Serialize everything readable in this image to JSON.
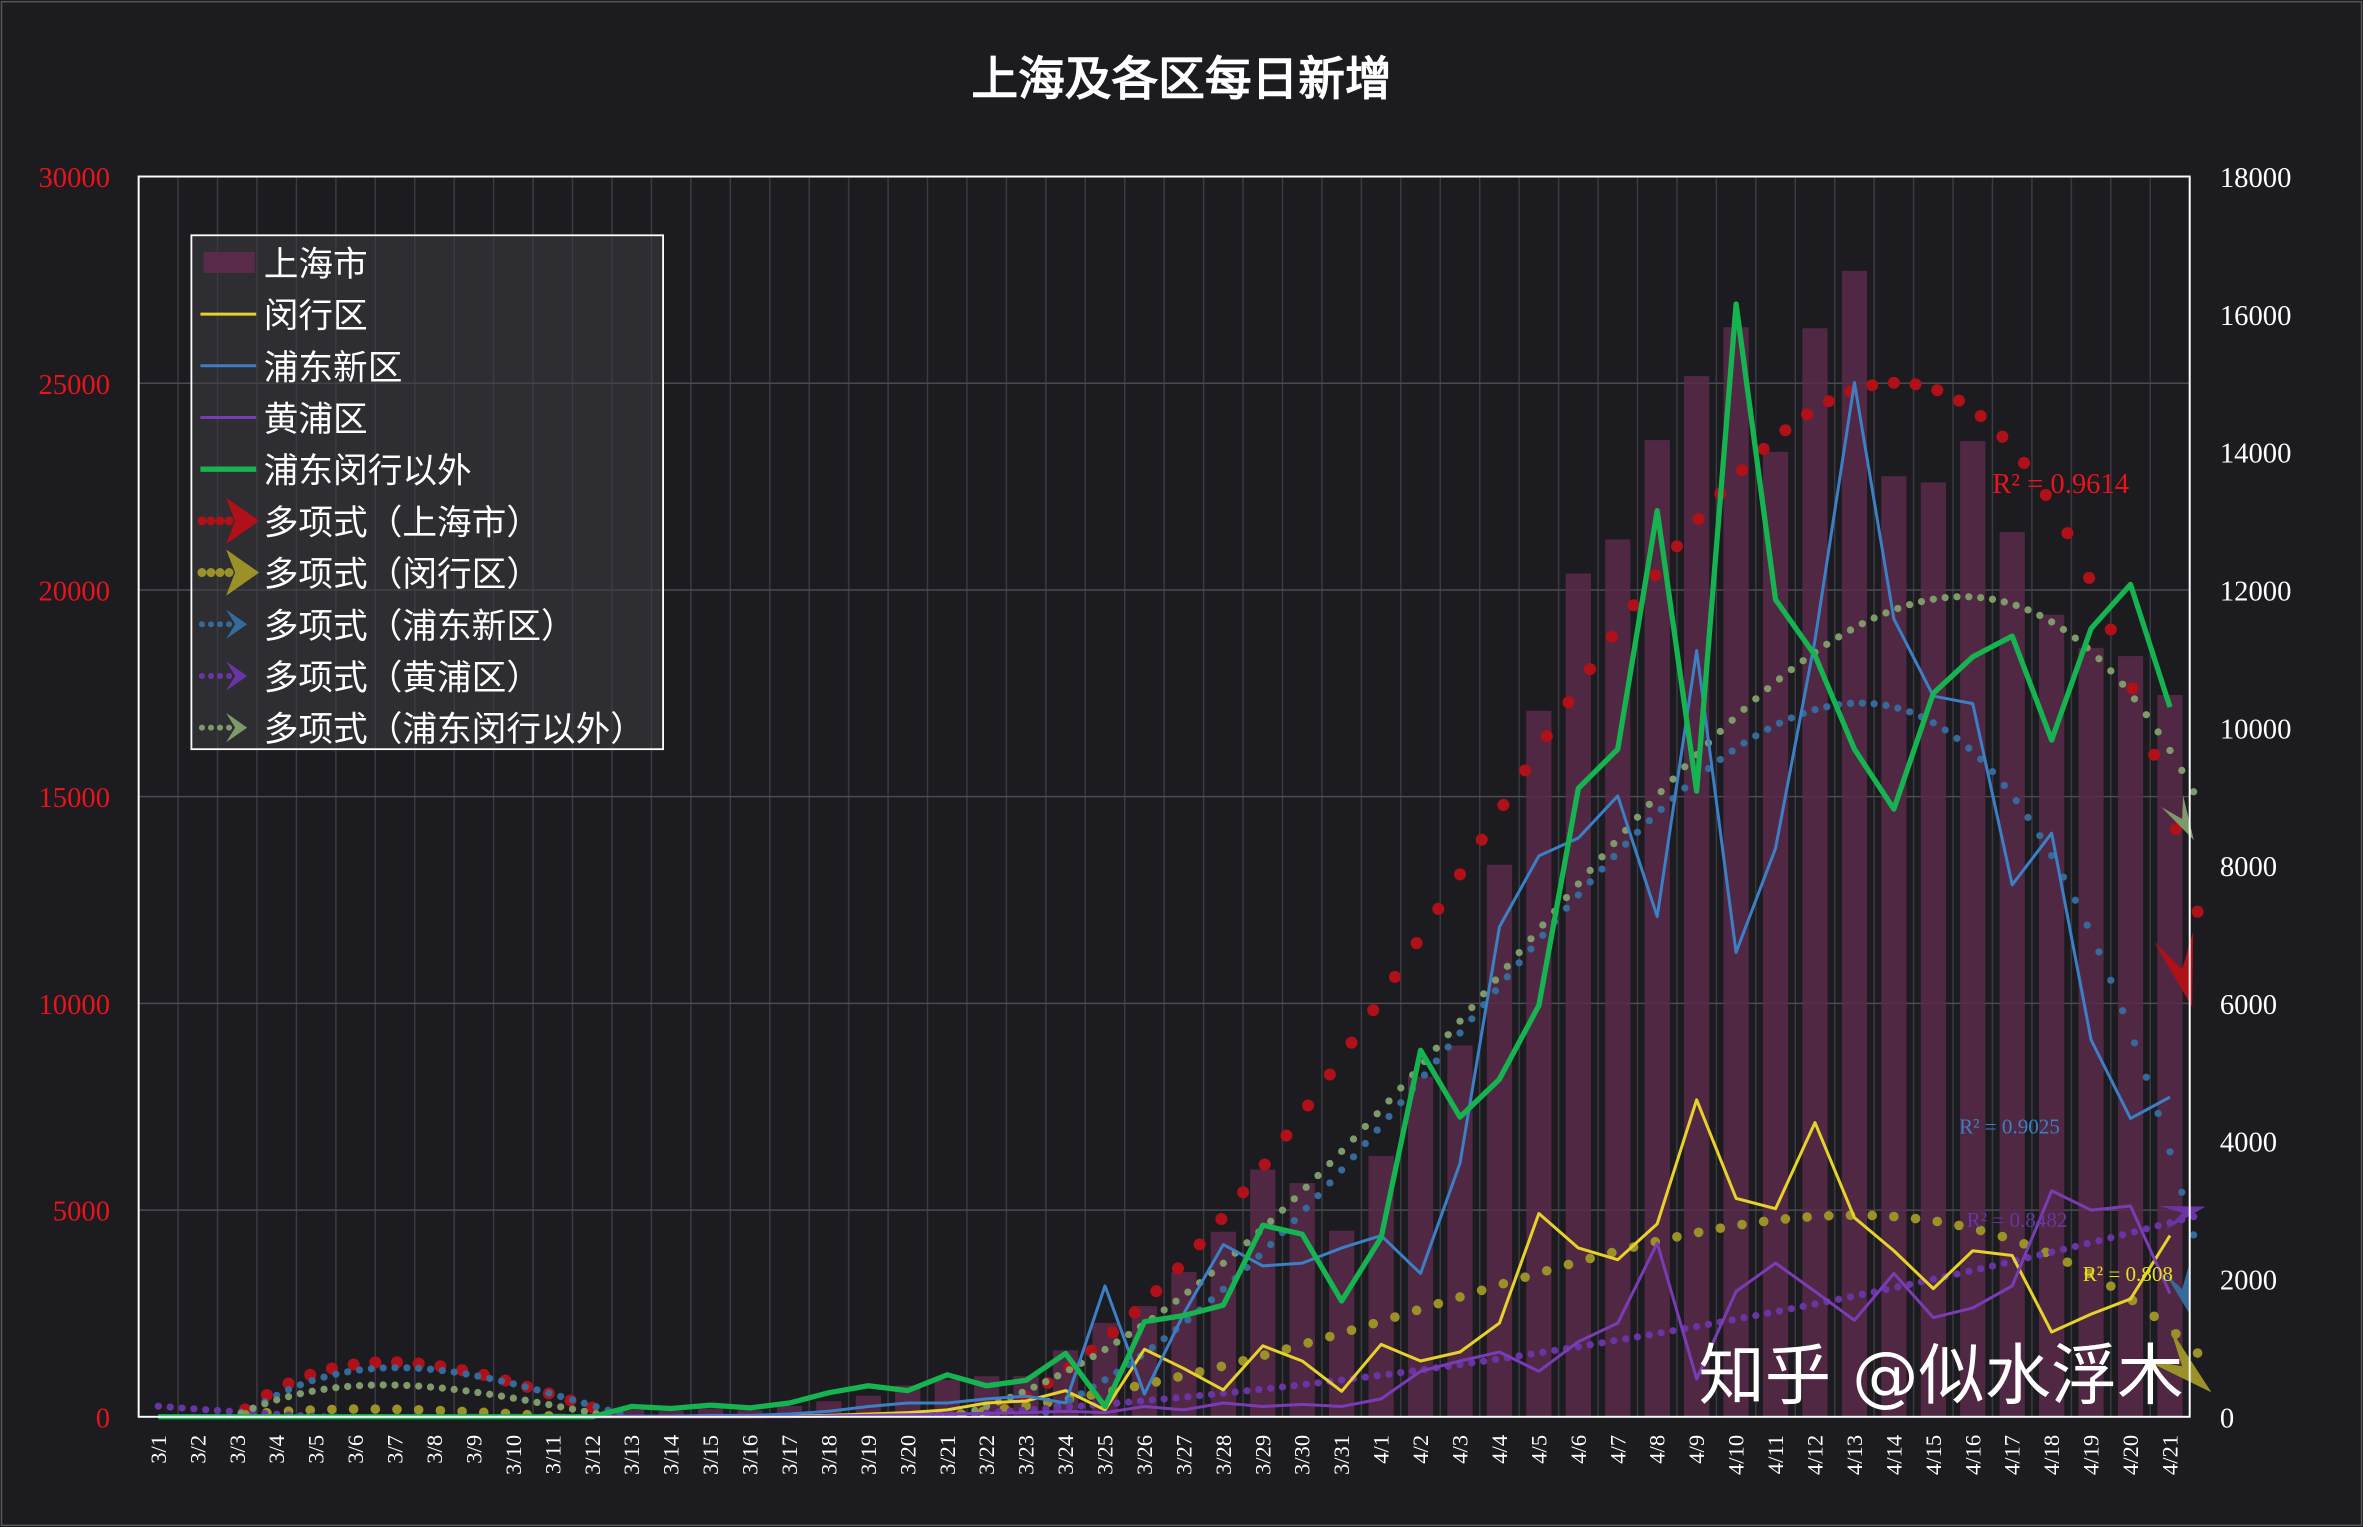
{
  "chart_data": {
    "type": "bar+line",
    "title": "上海及各区每日新增",
    "categories": [
      "3/1",
      "3/2",
      "3/3",
      "3/4",
      "3/5",
      "3/6",
      "3/7",
      "3/8",
      "3/9",
      "3/10",
      "3/11",
      "3/12",
      "3/13",
      "3/14",
      "3/15",
      "3/16",
      "3/17",
      "3/18",
      "3/19",
      "3/20",
      "3/21",
      "3/22",
      "3/23",
      "3/24",
      "3/25",
      "3/26",
      "3/27",
      "3/28",
      "3/29",
      "3/30",
      "3/31",
      "4/1",
      "4/2",
      "4/3",
      "4/4",
      "4/5",
      "4/6",
      "4/7",
      "4/8",
      "4/9",
      "4/10",
      "4/11",
      "4/12",
      "4/13",
      "4/14",
      "4/15",
      "4/16",
      "4/17",
      "4/18",
      "4/19",
      "4/20",
      "4/21"
    ],
    "left_axis": {
      "min": 0,
      "max": 30000,
      "ticks": [
        "0",
        "5000",
        "10000",
        "15000",
        "20000",
        "25000",
        "30000"
      ],
      "color": "#e8141c"
    },
    "right_axis": {
      "min": 0,
      "max": 18000,
      "ticks": [
        "0",
        "2000",
        "4000",
        "6000",
        "8000",
        "10000",
        "12000",
        "14000",
        "16000",
        "18000"
      ],
      "color": "#ffffff"
    },
    "grid": true,
    "legend_position": "top-left",
    "series": [
      {
        "name": "上海市",
        "type": "bar",
        "axis": "left",
        "color": "#5a2a4a",
        "values": [
          2,
          8,
          16,
          19,
          3,
          50,
          55,
          62,
          79,
          76,
          83,
          65,
          169,
          139,
          202,
          158,
          260,
          374,
          509,
          758,
          896,
          981,
          983,
          1609,
          2269,
          2678,
          3500,
          4477,
          5982,
          5653,
          4502,
          6311,
          8226,
          8983,
          13354,
          17077,
          20398,
          21222,
          23624,
          25173,
          26355,
          23342,
          26330,
          27719,
          22750,
          22600,
          23600,
          21400,
          19400,
          18600,
          18400,
          17460
        ]
      },
      {
        "name": "闵行区",
        "type": "line",
        "axis": "right",
        "color": "#e6d22a",
        "width": 2,
        "values": [
          0,
          0,
          0,
          0,
          0,
          0,
          0,
          0,
          0,
          0,
          0,
          0,
          0,
          0,
          0,
          0,
          10,
          20,
          40,
          60,
          100,
          200,
          230,
          380,
          100,
          980,
          700,
          390,
          1030,
          810,
          370,
          1050,
          810,
          940,
          1360,
          2950,
          2450,
          2280,
          2800,
          4600,
          3170,
          3020,
          4270,
          2890,
          2410,
          1860,
          2410,
          2340,
          1230,
          1490,
          1710,
          2630
        ]
      },
      {
        "name": "浦东新区",
        "type": "line",
        "axis": "right",
        "color": "#3c7fc4",
        "width": 2,
        "values": [
          0,
          0,
          0,
          0,
          0,
          0,
          0,
          0,
          0,
          0,
          0,
          0,
          10,
          10,
          20,
          20,
          40,
          80,
          150,
          200,
          200,
          260,
          300,
          200,
          1900,
          330,
          1500,
          2500,
          2190,
          2230,
          2450,
          2630,
          2080,
          3680,
          7110,
          8140,
          8400,
          9010,
          7260,
          11120,
          6740,
          8250,
          11270,
          15010,
          11580,
          10460,
          10350,
          7720,
          8470,
          5470,
          4330,
          4640
        ]
      },
      {
        "name": "黄浦区",
        "type": "line",
        "axis": "right",
        "color": "#7a3cb4",
        "width": 2,
        "values": [
          0,
          0,
          0,
          0,
          0,
          0,
          0,
          0,
          0,
          0,
          0,
          0,
          0,
          0,
          0,
          0,
          0,
          10,
          20,
          30,
          40,
          50,
          60,
          80,
          60,
          150,
          100,
          200,
          150,
          180,
          150,
          260,
          660,
          810,
          940,
          660,
          1090,
          1360,
          2520,
          550,
          1820,
          2230,
          1820,
          1400,
          2080,
          1440,
          1580,
          1900,
          3280,
          3000,
          3060,
          1790
        ]
      },
      {
        "name": "浦东闵行以外",
        "type": "line",
        "axis": "right",
        "color": "#16b450",
        "width": 3.5,
        "values": [
          0,
          0,
          0,
          0,
          0,
          0,
          0,
          0,
          0,
          0,
          0,
          0,
          150,
          120,
          170,
          130,
          200,
          350,
          450,
          380,
          610,
          450,
          530,
          920,
          150,
          1380,
          1470,
          1620,
          2780,
          2650,
          1680,
          2600,
          5320,
          4350,
          4900,
          5970,
          9120,
          9690,
          13150,
          9080,
          16150,
          11860,
          11050,
          9690,
          8820,
          10500,
          11030,
          11330,
          9820,
          11440,
          12080,
          10300
        ]
      }
    ],
    "trendlines": [
      {
        "name": "多项式（上海市）",
        "of": "上海市",
        "type": "polynomial",
        "order": 4,
        "color": "#b01018",
        "r2_label": "R² = 0.9614",
        "dot": 4
      },
      {
        "name": "多项式（闵行区）",
        "of": "闵行区",
        "type": "polynomial",
        "order": 4,
        "color": "#9a9228",
        "r2_label": "R² = 0.808",
        "dot": 3.2
      },
      {
        "name": "多项式（浦东新区）",
        "of": "浦东新区",
        "type": "polynomial",
        "order": 4,
        "color": "#356a9a",
        "r2_label": "R² = 0.9025",
        "dot": 2.4
      },
      {
        "name": "多项式（黄浦区）",
        "of": "黄浦区",
        "type": "polynomial",
        "order": 3,
        "color": "#6a34a4",
        "r2_label": "R² = 0.8482",
        "dot": 2.4
      },
      {
        "name": "多项式（浦东闵行以外）",
        "of": "浦东闵行以外",
        "type": "polynomial",
        "order": 4,
        "color": "#7f9a6a",
        "r2_label": "",
        "dot": 2.4
      }
    ]
  },
  "watermark": "知乎 @似水浮木"
}
